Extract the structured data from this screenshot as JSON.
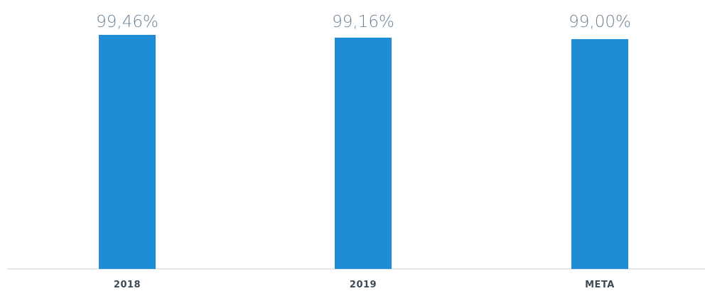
{
  "chart_data": {
    "type": "bar",
    "categories": [
      "2018",
      "2019",
      "META"
    ],
    "values": [
      99.46,
      99.16,
      99.0
    ],
    "data_labels": [
      "99,46%",
      "99,16%",
      "99,00%"
    ],
    "title": "",
    "xlabel": "",
    "ylabel": "",
    "ylim": [
      0,
      100
    ],
    "grid": false,
    "legend": "none"
  },
  "colors": {
    "bar": "#1f8dd6",
    "value_label": "#6d8397",
    "category_label": "#3d4a55",
    "axis": "#c9ced3"
  }
}
